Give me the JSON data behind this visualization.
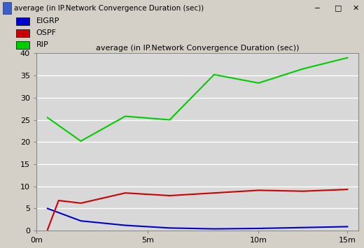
{
  "title": "average (in IP.Network Convergence Duration (sec))",
  "window_title": "average (in IP.Network Convergence Duration (sec))",
  "bg_color": "#d4d0c8",
  "plot_bg_color": "#d8d8d8",
  "x_ticks_labels": [
    "0m",
    "5m",
    "10m",
    "15m"
  ],
  "x_ticks_positions": [
    0,
    5,
    10,
    14
  ],
  "ylim": [
    0,
    40
  ],
  "yticks": [
    0,
    5,
    10,
    15,
    20,
    25,
    30,
    35,
    40
  ],
  "eigrp": {
    "label": "EIGRP",
    "color": "#0000cc",
    "x": [
      0.5,
      2,
      4,
      6,
      8,
      10,
      12,
      14
    ],
    "y": [
      5.0,
      2.2,
      1.2,
      0.6,
      0.4,
      0.5,
      0.7,
      0.9
    ]
  },
  "ospf": {
    "label": "OSPF",
    "color": "#cc0000",
    "x": [
      0.5,
      1.0,
      2,
      4,
      6,
      8,
      10,
      12,
      14
    ],
    "y": [
      0.2,
      6.8,
      6.2,
      8.5,
      7.9,
      8.5,
      9.1,
      8.9,
      9.3
    ]
  },
  "rip": {
    "label": "RIP",
    "color": "#00cc00",
    "x": [
      0.5,
      2,
      4,
      6,
      8,
      10,
      12,
      14
    ],
    "y": [
      25.5,
      20.2,
      25.8,
      25.0,
      35.2,
      33.3,
      36.5,
      39.0
    ]
  }
}
